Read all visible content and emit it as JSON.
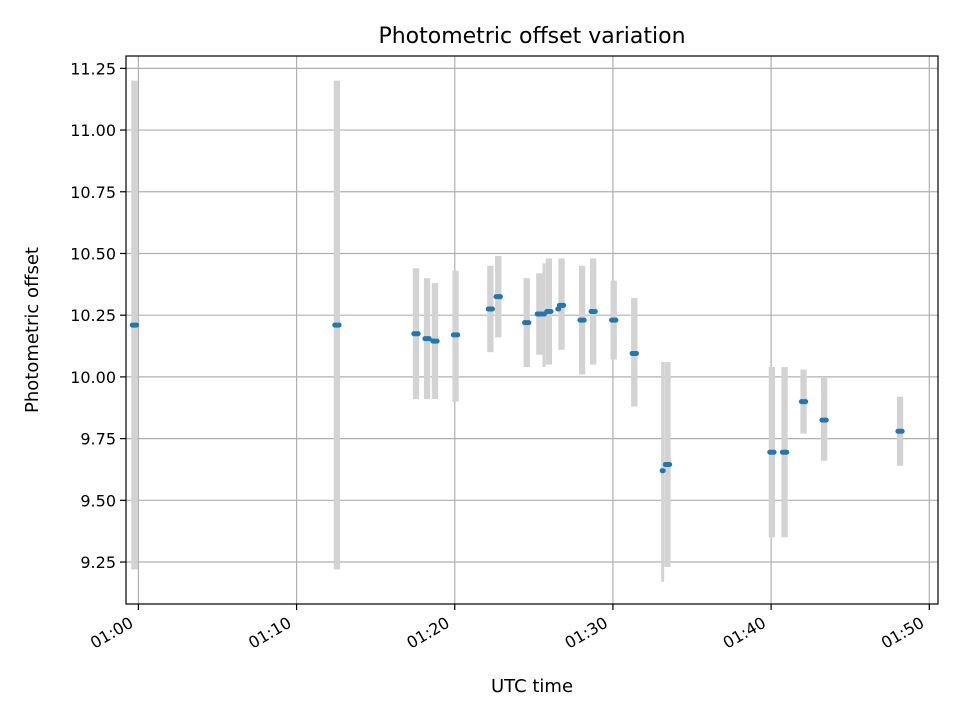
{
  "chart_data": {
    "type": "scatter",
    "title": "Photometric offset variation",
    "xlabel": "UTC time",
    "ylabel": "Photometric offset",
    "xlim": [
      "00:59:13",
      "01:50:33"
    ],
    "ylim": [
      9.08,
      11.3
    ],
    "x_ticks": [
      "01:00",
      "01:10",
      "01:20",
      "01:30",
      "01:40",
      "01:50"
    ],
    "y_ticks": [
      "9.25",
      "9.50",
      "9.75",
      "10.00",
      "10.25",
      "10.50",
      "10.75",
      "11.00",
      "11.25"
    ],
    "grid": true,
    "colors": {
      "point": "#1f77b4",
      "error_bar": "#d3d3d3",
      "grid": "#b0b0b0"
    },
    "points": [
      {
        "start": "00:59:33",
        "end": "00:59:57",
        "y": 10.21,
        "lo": 9.22,
        "hi": 11.2
      },
      {
        "start": "01:12:21",
        "end": "01:12:45",
        "y": 10.21,
        "lo": 9.22,
        "hi": 11.2
      },
      {
        "start": "01:17:21",
        "end": "01:17:45",
        "y": 10.175,
        "lo": 9.91,
        "hi": 10.44
      },
      {
        "start": "01:18:03",
        "end": "01:18:27",
        "y": 10.155,
        "lo": 9.91,
        "hi": 10.4
      },
      {
        "start": "01:18:33",
        "end": "01:18:57",
        "y": 10.145,
        "lo": 9.91,
        "hi": 10.38
      },
      {
        "start": "01:19:51",
        "end": "01:20:15",
        "y": 10.17,
        "lo": 9.9,
        "hi": 10.43
      },
      {
        "start": "01:22:03",
        "end": "01:22:27",
        "y": 10.275,
        "lo": 10.1,
        "hi": 10.45
      },
      {
        "start": "01:22:33",
        "end": "01:22:57",
        "y": 10.325,
        "lo": 10.16,
        "hi": 10.49
      },
      {
        "start": "01:24:21",
        "end": "01:24:45",
        "y": 10.22,
        "lo": 10.04,
        "hi": 10.4
      },
      {
        "start": "01:25:09",
        "end": "01:25:33",
        "y": 10.255,
        "lo": 10.09,
        "hi": 10.42
      },
      {
        "start": "01:25:33",
        "end": "01:25:39",
        "y": 10.255,
        "lo": 10.04,
        "hi": 10.46
      },
      {
        "start": "01:25:45",
        "end": "01:26:09",
        "y": 10.265,
        "lo": 10.05,
        "hi": 10.48
      },
      {
        "start": "01:26:33",
        "end": "01:26:57",
        "y": 10.29,
        "lo": 10.11,
        "hi": 10.48
      },
      {
        "start": "01:26:27",
        "end": "01:26:33",
        "y": 10.275,
        "lo": 10.27,
        "hi": 10.28
      },
      {
        "start": "01:27:51",
        "end": "01:28:15",
        "y": 10.23,
        "lo": 10.01,
        "hi": 10.45
      },
      {
        "start": "01:28:33",
        "end": "01:28:57",
        "y": 10.265,
        "lo": 10.05,
        "hi": 10.48
      },
      {
        "start": "01:29:51",
        "end": "01:30:15",
        "y": 10.23,
        "lo": 10.07,
        "hi": 10.39
      },
      {
        "start": "01:31:09",
        "end": "01:31:33",
        "y": 10.095,
        "lo": 9.88,
        "hi": 10.32
      },
      {
        "start": "01:33:03",
        "end": "01:33:09",
        "y": 9.62,
        "lo": 9.17,
        "hi": 10.06
      },
      {
        "start": "01:33:15",
        "end": "01:33:39",
        "y": 9.645,
        "lo": 9.23,
        "hi": 10.06
      },
      {
        "start": "01:39:51",
        "end": "01:40:15",
        "y": 9.695,
        "lo": 9.35,
        "hi": 10.04
      },
      {
        "start": "01:40:39",
        "end": "01:41:03",
        "y": 9.695,
        "lo": 9.35,
        "hi": 10.04
      },
      {
        "start": "01:41:51",
        "end": "01:42:15",
        "y": 9.9,
        "lo": 9.77,
        "hi": 10.03
      },
      {
        "start": "01:43:09",
        "end": "01:43:33",
        "y": 9.825,
        "lo": 9.66,
        "hi": 10.0
      },
      {
        "start": "01:47:57",
        "end": "01:48:21",
        "y": 9.78,
        "lo": 9.64,
        "hi": 9.92
      }
    ]
  }
}
